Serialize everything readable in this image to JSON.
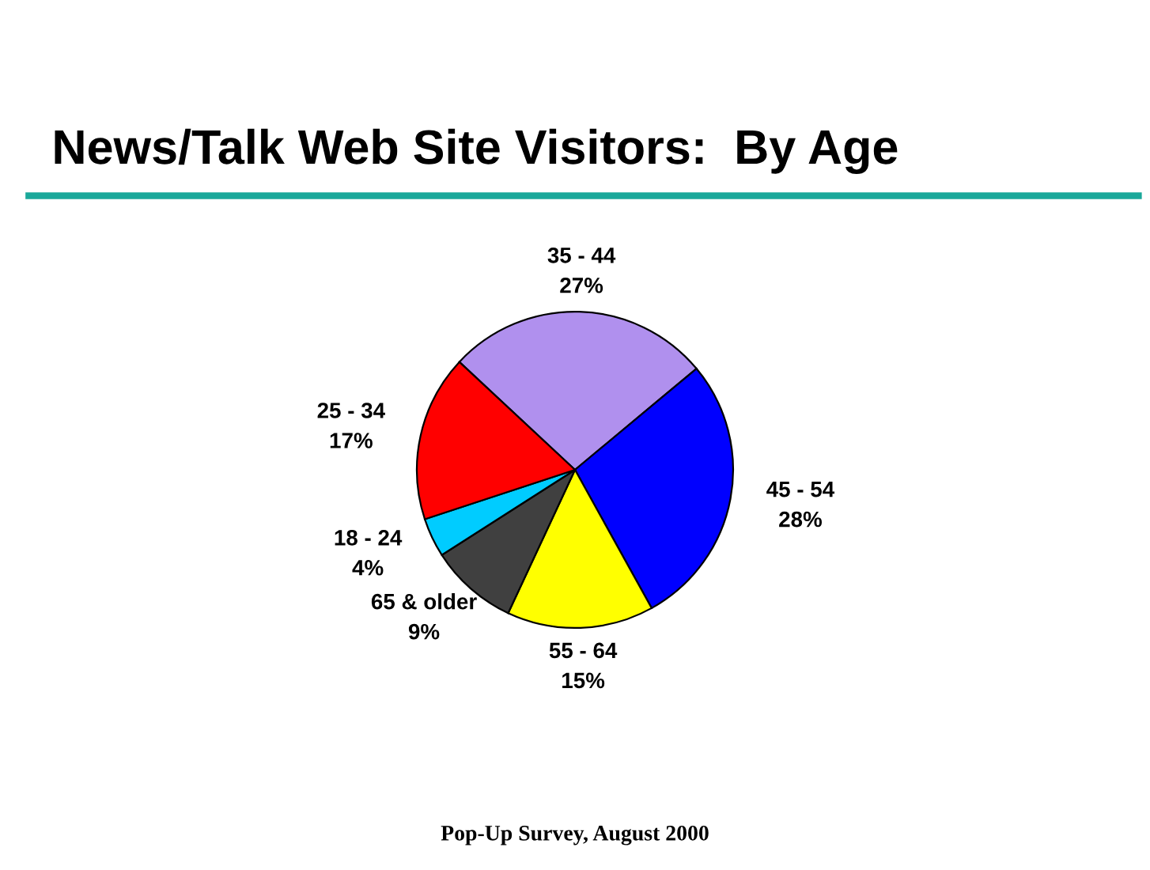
{
  "chart_data": {
    "type": "pie",
    "title": "News/Talk Web Site Visitors:  By Age",
    "categories": [
      "35 - 44",
      "45 - 54",
      "55 - 64",
      "65 & older",
      "18 - 24",
      "25 - 34"
    ],
    "values": [
      27,
      28,
      15,
      9,
      4,
      17
    ],
    "value_labels": [
      "27%",
      "28%",
      "15%",
      "9%",
      "4%",
      "17%"
    ],
    "colors": [
      "#b090ee",
      "#0000ff",
      "#ffff00",
      "#404040",
      "#00ccff",
      "#ff0000"
    ],
    "annotations": [
      "Pop-Up Survey, August 2000"
    ]
  }
}
